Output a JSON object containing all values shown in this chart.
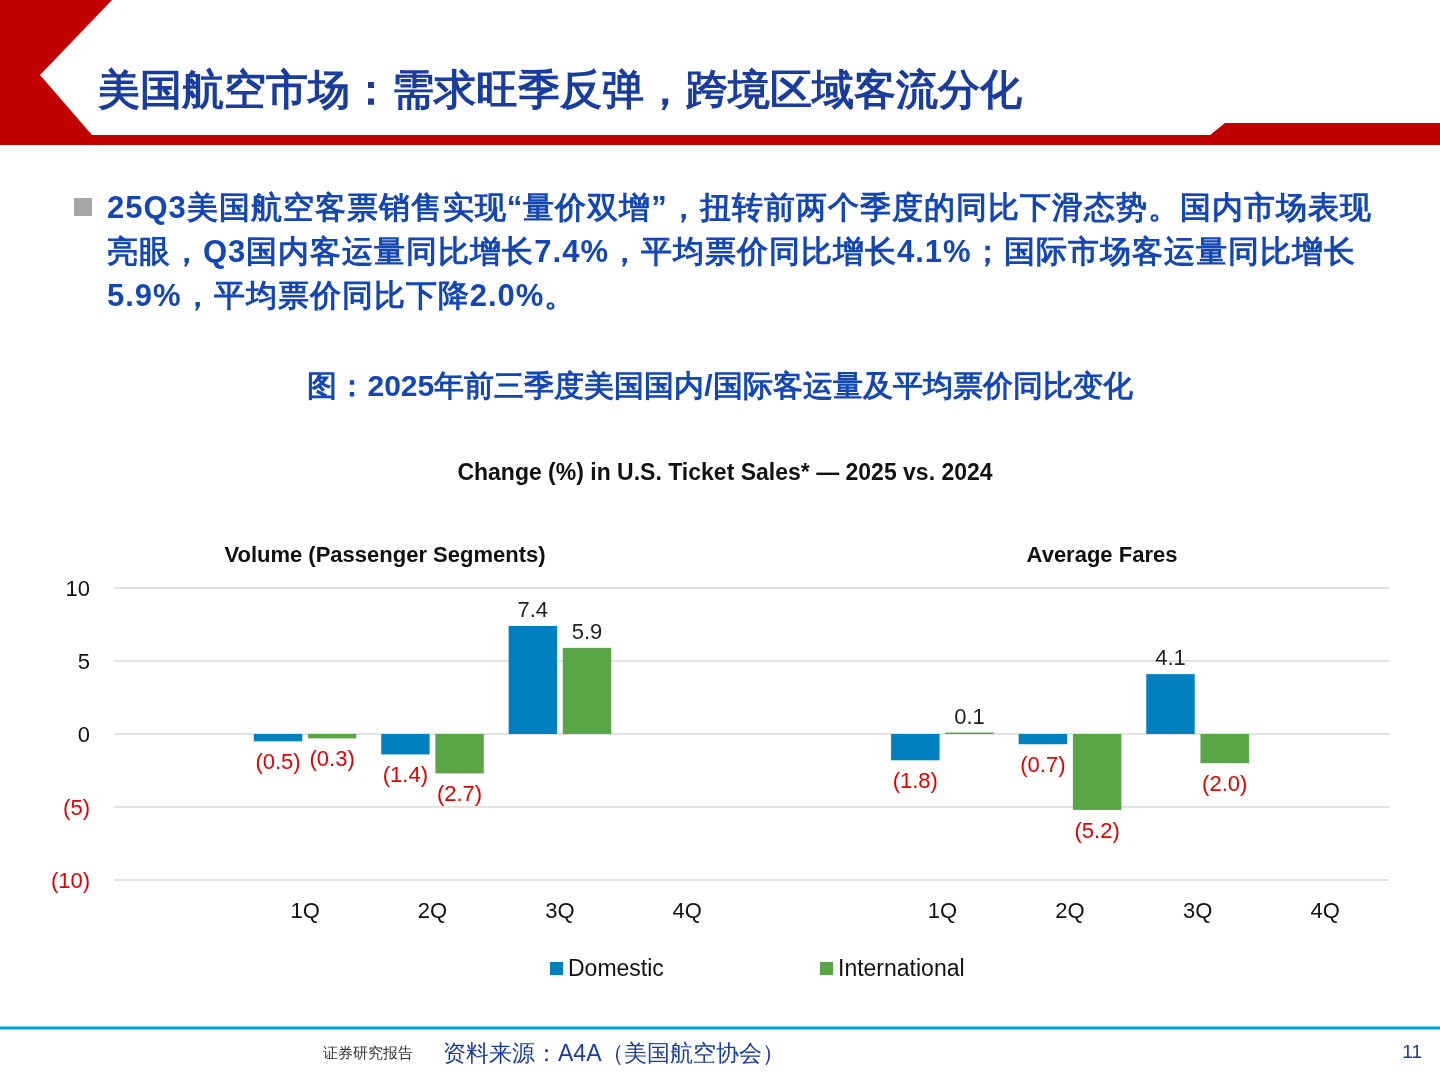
{
  "chart_data": [
    {
      "type": "bar",
      "title": "Volume (Passenger Segments)",
      "categories": [
        "1Q",
        "2Q",
        "3Q",
        "4Q"
      ],
      "series": [
        {
          "name": "Domestic",
          "color": "#0080bf",
          "values": [
            -0.5,
            -1.4,
            7.4,
            null
          ],
          "value_labels": [
            "(0.5)",
            "(1.4)",
            "7.4",
            null
          ]
        },
        {
          "name": "International",
          "color": "#5aa546",
          "values": [
            -0.3,
            -2.7,
            5.9,
            null
          ],
          "value_labels": [
            "(0.3)",
            "(2.7)",
            "5.9",
            null
          ]
        }
      ],
      "ylim": [
        -10,
        10
      ],
      "yticks": [
        10,
        5,
        0,
        {
          "value": -5,
          "label": "(5)"
        },
        {
          "value": -10,
          "label": "(10)"
        }
      ],
      "grid": "y",
      "legend": "bottom",
      "annotations": [
        "美国航空市场：需求旺季反弹，跨境区域客流分化",
        "25Q3美国航空客票销售实现“量价双增”，扭转前两个季度的同比下滑态势。国内市场表现亮眼，Q3国内客运量同比增长7.4%，平均票价同比增长4.1%；国际市场客运量同比增长5.9%，平均票价同比下降2.0%。",
        "图：2025年前三季度美国国内/国际客运量及平均票价同比变化",
        "Change (%) in U.S. Ticket Sales* — 2025 vs. 2024",
        "证券研究报告",
        "资料来源：A4A（美国航空协会）",
        "11"
      ]
    },
    {
      "type": "bar",
      "title": "Average Fares",
      "categories": [
        "1Q",
        "2Q",
        "3Q",
        "4Q"
      ],
      "series": [
        {
          "color": "#0080bf",
          "values": [
            -1.8,
            -0.7,
            4.1,
            null
          ],
          "value_labels": [
            "(1.8)",
            "(0.7)",
            "4.1",
            null
          ]
        },
        {
          "color": "#5aa546",
          "values": [
            0.1,
            -5.2,
            -2.0,
            null
          ],
          "value_labels": [
            "0.1",
            "(5.2)",
            "(2.0)",
            null
          ]
        }
      ],
      "ylim": [
        -10,
        10
      ],
      "yticks": [
        10,
        5,
        0,
        -5,
        -10
      ],
      "grid": "y",
      "tick_labels": "x"
    }
  ]
}
